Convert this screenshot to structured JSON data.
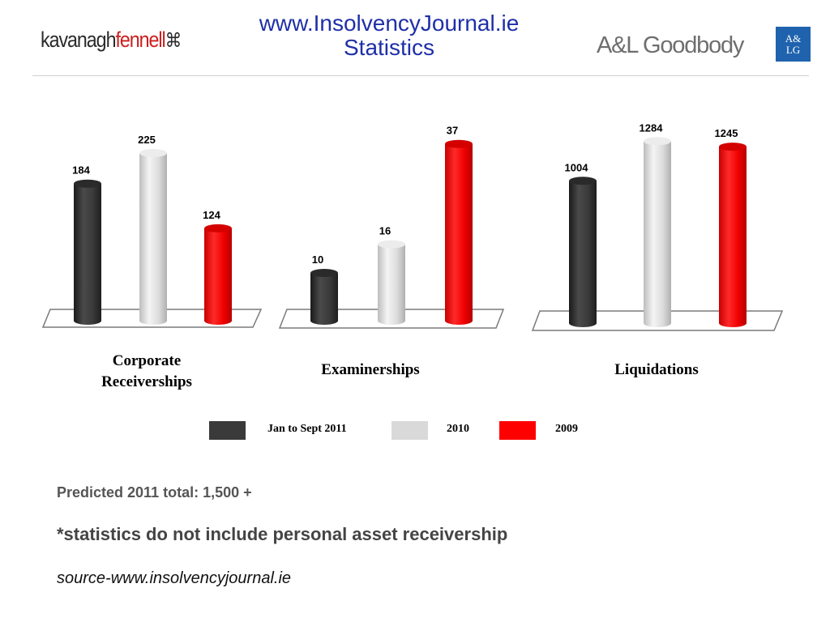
{
  "header": {
    "title_line1": "www.InsolvencyJournal.ie",
    "title_line2": "Statistics",
    "logo_left_part1": "kavanagh",
    "logo_left_part2": "fennell",
    "logo_left_mark": "⌘",
    "logo_right_text": "A&L Goodbody",
    "logo_right_box_line1": "A&",
    "logo_right_box_line2": "LG"
  },
  "colors": {
    "title_blue": "#1f2fa8",
    "series_2011": "#3a3a3a",
    "series_2010": "#d9d9d9",
    "series_2009": "#ff0000",
    "brand_red": "#cc1f1f",
    "brand_blue": "#1f63ae"
  },
  "chart_data": {
    "type": "bar",
    "categories": [
      "Corporate Receiverships",
      "Examinerships",
      "Liquidations"
    ],
    "series": [
      {
        "name": "Jan to Sept 2011",
        "values": [
          184,
          10,
          1004
        ]
      },
      {
        "name": "2010",
        "values": [
          225,
          16,
          1284
        ]
      },
      {
        "name": "2009",
        "values": [
          124,
          37,
          1245
        ]
      }
    ],
    "category_labels": [
      {
        "line1": "Corporate",
        "line2": "Receiverships"
      },
      {
        "line1": "Examinerships",
        "line2": ""
      },
      {
        "line1": "Liquidations",
        "line2": ""
      }
    ],
    "independent_scales": true,
    "legend_position": "bottom",
    "grid": false
  },
  "notes": {
    "predicted": "Predicted 2011 total: 1,500 +",
    "disclaimer": "*statistics do not include personal asset receivership",
    "source": "source-www.insolvencyjournal.ie"
  }
}
